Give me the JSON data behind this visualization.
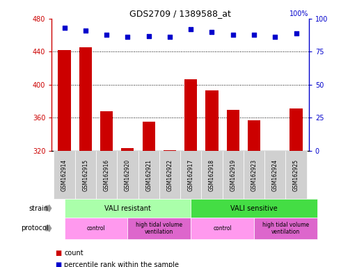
{
  "title": "GDS2709 / 1389588_at",
  "samples": [
    "GSM162914",
    "GSM162915",
    "GSM162916",
    "GSM162920",
    "GSM162921",
    "GSM162922",
    "GSM162917",
    "GSM162918",
    "GSM162919",
    "GSM162923",
    "GSM162924",
    "GSM162925"
  ],
  "counts": [
    442,
    445,
    368,
    323,
    355,
    321,
    407,
    393,
    370,
    357,
    320,
    371
  ],
  "percentile_ranks": [
    93,
    91,
    88,
    86,
    87,
    86,
    92,
    90,
    88,
    88,
    86,
    89
  ],
  "ylim_left": [
    320,
    480
  ],
  "ylim_right": [
    0,
    100
  ],
  "yticks_left": [
    320,
    360,
    400,
    440,
    480
  ],
  "yticks_right": [
    0,
    25,
    50,
    75,
    100
  ],
  "bar_color": "#cc0000",
  "dot_color": "#0000cc",
  "strain_groups": [
    {
      "label": "VALI resistant",
      "start": 0,
      "end": 6,
      "color": "#aaffaa"
    },
    {
      "label": "VALI sensitive",
      "start": 6,
      "end": 12,
      "color": "#44dd44"
    }
  ],
  "protocol_groups": [
    {
      "label": "control",
      "start": 0,
      "end": 3,
      "color": "#ff99ee"
    },
    {
      "label": "high tidal volume\nventilation",
      "start": 3,
      "end": 6,
      "color": "#dd66cc"
    },
    {
      "label": "control",
      "start": 6,
      "end": 9,
      "color": "#ff99ee"
    },
    {
      "label": "high tidal volume\nventilation",
      "start": 9,
      "end": 12,
      "color": "#dd66cc"
    }
  ],
  "legend_count_color": "#cc0000",
  "legend_pct_color": "#0000cc",
  "legend_count_label": "count",
  "legend_pct_label": "percentile rank within the sample",
  "bar_width": 0.6,
  "gridline_ticks": [
    360,
    400,
    440
  ],
  "fig_width": 5.13,
  "fig_height": 3.84,
  "dpi": 100
}
